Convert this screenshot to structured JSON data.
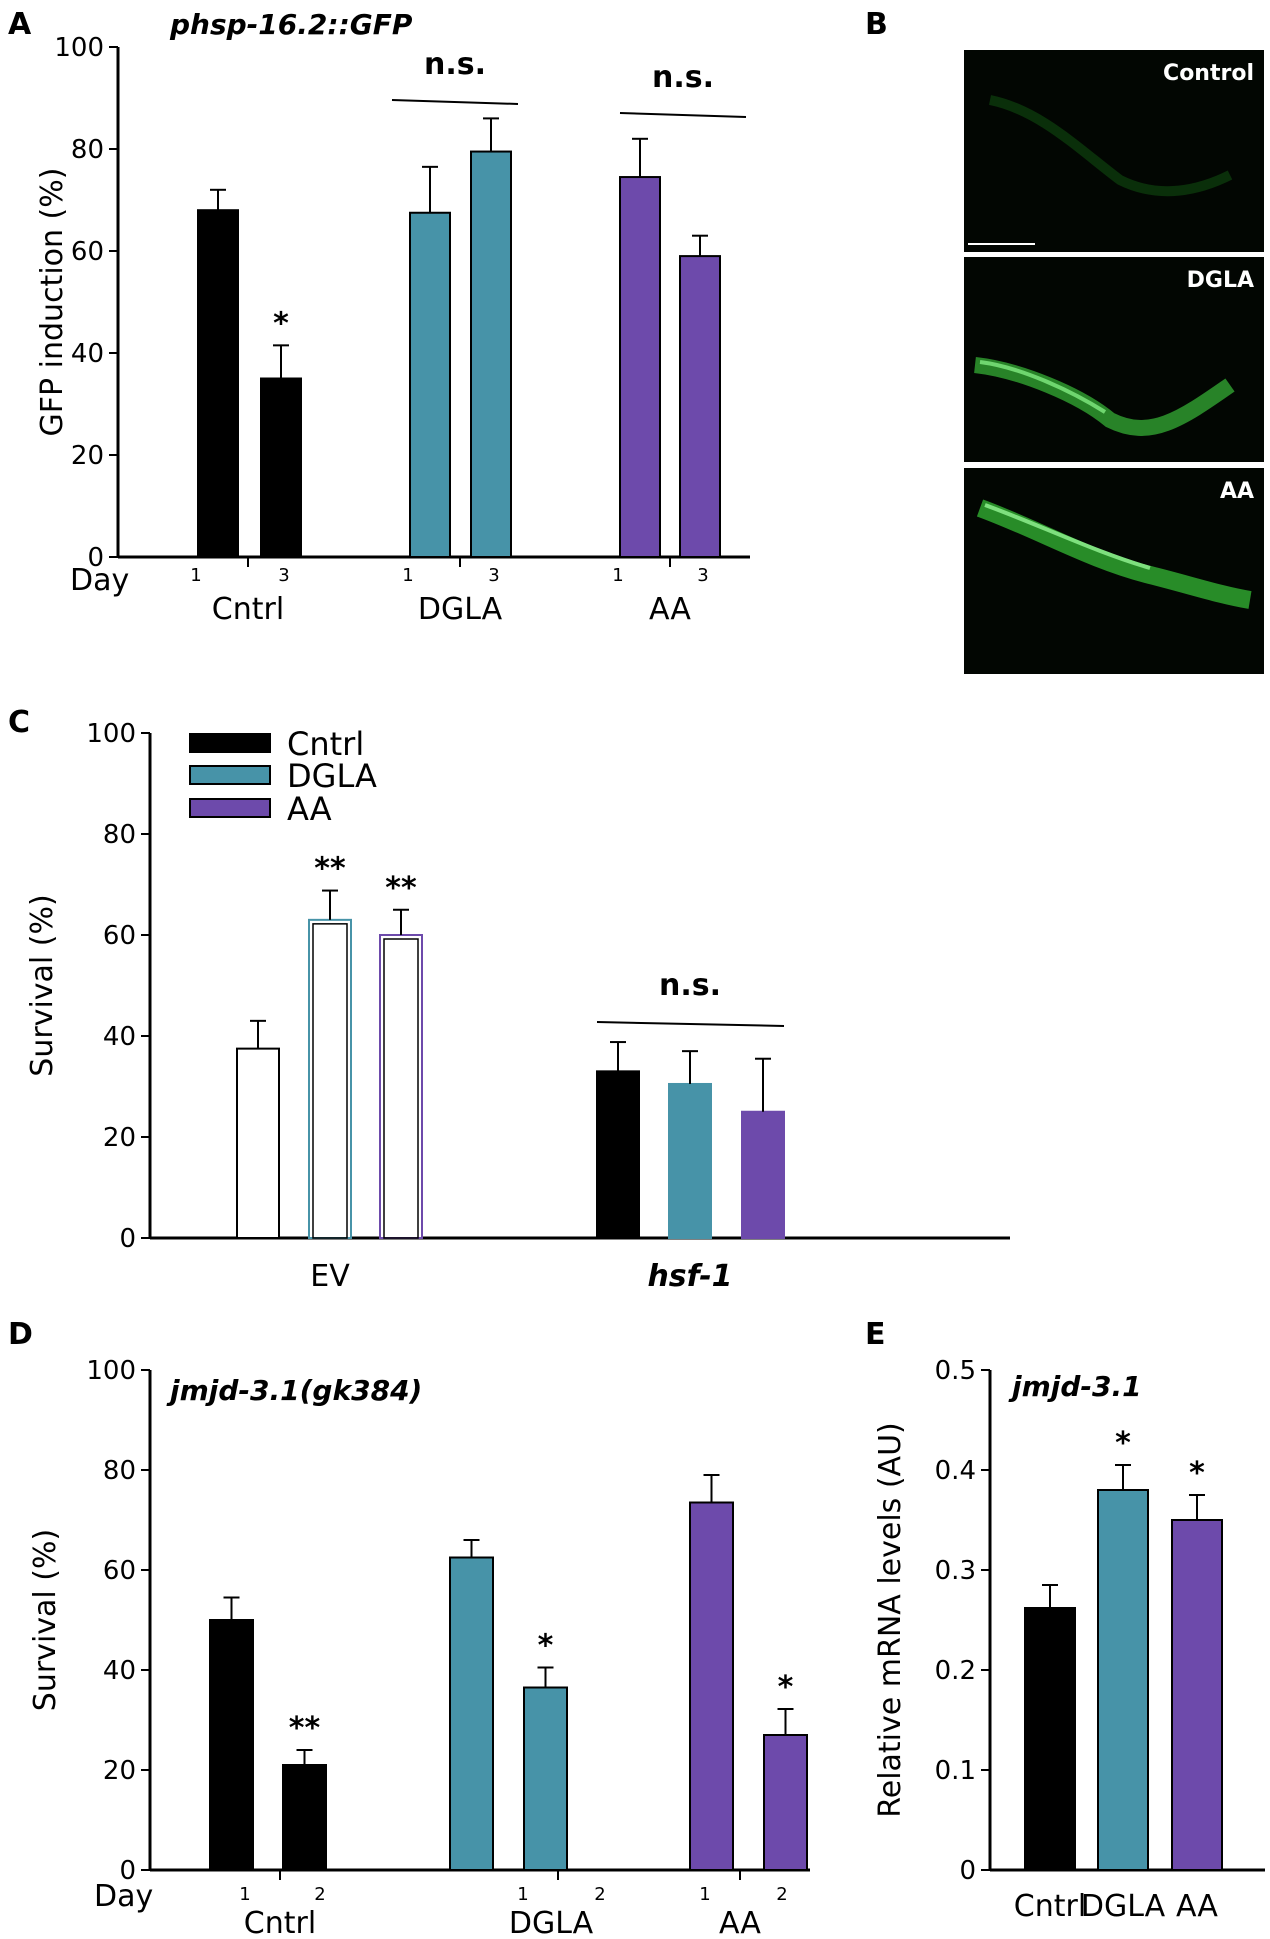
{
  "panels": {
    "A": {
      "letter": "A"
    },
    "B": {
      "letter": "B"
    },
    "C": {
      "letter": "C"
    },
    "D": {
      "letter": "D"
    },
    "E": {
      "letter": "E"
    }
  },
  "colors": {
    "cntrl": "#000000",
    "dgla": "#4793a8",
    "aa": "#6d4aab",
    "open": "#ffffff"
  },
  "micrographs": [
    {
      "label": "Control"
    },
    {
      "label": "DGLA"
    },
    {
      "label": "AA"
    }
  ],
  "chart_data": [
    {
      "id": "A",
      "type": "bar",
      "title": "phsp-16.2::GFP",
      "ylabel": "GFP induction (%)",
      "xlabel_prefix": "Day",
      "ylim": [
        0,
        100
      ],
      "yticks": [
        "0",
        "20",
        "40",
        "60",
        "80",
        "100"
      ],
      "groups": [
        {
          "label": "Cntrl",
          "color": "cntrl",
          "day_labels": [
            "1",
            "3"
          ],
          "values": [
            68,
            35
          ],
          "errors": [
            4,
            6.5
          ],
          "stars": [
            "",
            "*"
          ]
        },
        {
          "label": "DGLA",
          "color": "dgla",
          "day_labels": [
            "1",
            "3"
          ],
          "values": [
            67.5,
            79.5
          ],
          "errors": [
            9,
            6.5
          ],
          "stars": [
            "",
            ""
          ]
        },
        {
          "label": "AA",
          "color": "aa",
          "day_labels": [
            "1",
            "3"
          ],
          "values": [
            74.5,
            59
          ],
          "errors": [
            7.5,
            4
          ],
          "stars": [
            "",
            ""
          ]
        }
      ],
      "annotations": [
        {
          "text": "n.s.",
          "group": 1
        },
        {
          "text": "n.s.",
          "group": 2
        }
      ]
    },
    {
      "id": "C",
      "type": "bar",
      "ylabel": "Survival (%)",
      "ylim": [
        0,
        100
      ],
      "yticks": [
        "0",
        "20",
        "40",
        "60",
        "80",
        "100"
      ],
      "legend": {
        "position": "top-left",
        "entries": [
          {
            "label": "Cntrl",
            "color": "cntrl"
          },
          {
            "label": "DGLA",
            "color": "dgla"
          },
          {
            "label": "AA",
            "color": "aa"
          }
        ]
      },
      "groups": [
        {
          "label": "EV",
          "italic": false,
          "filled": false,
          "values": [
            37.5,
            63,
            60
          ],
          "errors": [
            5.5,
            5.8,
            5
          ],
          "stars": [
            "",
            "**",
            "**"
          ]
        },
        {
          "label": "hsf-1",
          "italic": true,
          "filled": true,
          "values": [
            33,
            30.5,
            25
          ],
          "errors": [
            5.8,
            6.5,
            10.5
          ],
          "stars": [
            "",
            "",
            ""
          ]
        }
      ],
      "annotations": [
        {
          "text": "n.s.",
          "group": 1
        }
      ]
    },
    {
      "id": "D",
      "type": "bar",
      "title": "jmjd-3.1(gk384)",
      "ylabel": "Survival (%)",
      "xlabel_prefix": "Day",
      "ylim": [
        0,
        100
      ],
      "yticks": [
        "0",
        "20",
        "40",
        "60",
        "80",
        "100"
      ],
      "groups": [
        {
          "label": "Cntrl",
          "color": "cntrl",
          "day_labels": [
            "1",
            "2"
          ],
          "values": [
            50,
            21
          ],
          "errors": [
            4.5,
            3
          ],
          "stars": [
            "",
            "**"
          ]
        },
        {
          "label": "DGLA",
          "color": "dgla",
          "day_labels": [
            "1",
            "2"
          ],
          "values": [
            62.5,
            36.5
          ],
          "errors": [
            3.5,
            4
          ],
          "stars": [
            "",
            "*"
          ]
        },
        {
          "label": "AA",
          "color": "aa",
          "day_labels": [
            "1",
            "2"
          ],
          "values": [
            73.5,
            27
          ],
          "errors": [
            5.5,
            5.2
          ],
          "stars": [
            "",
            "*"
          ]
        }
      ]
    },
    {
      "id": "E",
      "type": "bar",
      "title": "jmjd-3.1",
      "ylabel": "Relative mRNA levels (AU)",
      "ylim": [
        0,
        0.5
      ],
      "yticks": [
        "0",
        "0.1",
        "0.2",
        "0.3",
        "0.4",
        "0.5"
      ],
      "categories": [
        "Cntrl",
        "DGLA",
        "AA"
      ],
      "colors": [
        "cntrl",
        "dgla",
        "aa"
      ],
      "values": [
        0.262,
        0.38,
        0.35
      ],
      "errors": [
        0.023,
        0.025,
        0.025
      ],
      "stars": [
        "",
        "*",
        "*"
      ]
    }
  ]
}
